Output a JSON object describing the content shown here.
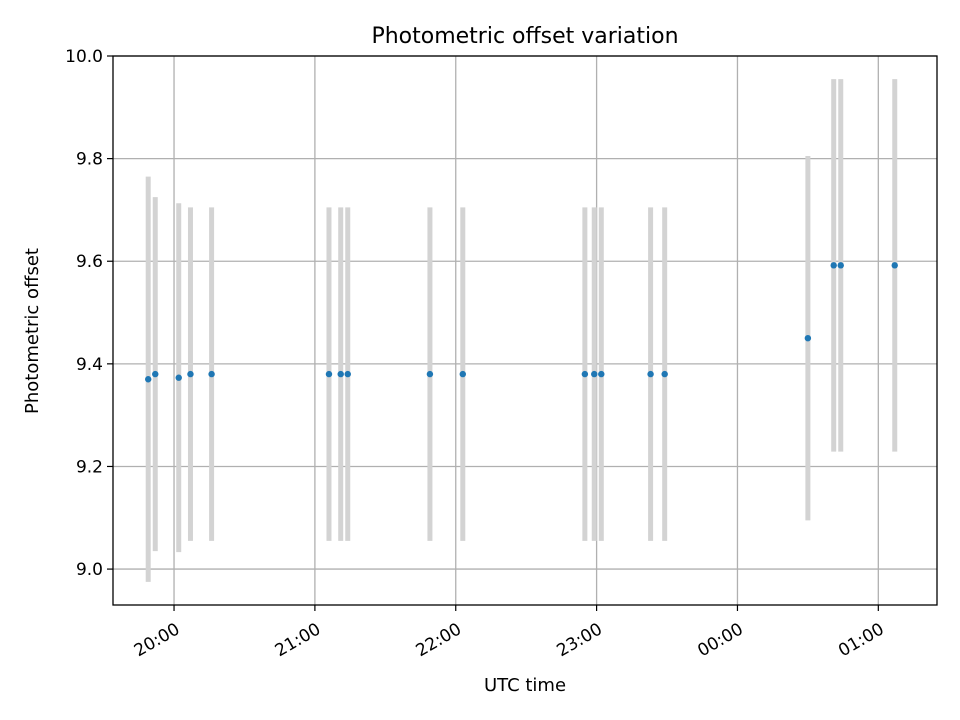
{
  "chart_data": {
    "type": "scatter",
    "title": "Photometric offset variation",
    "xlabel": "UTC time",
    "ylabel": "Photometric offset",
    "xlim": [
      "19:34",
      "01:25"
    ],
    "ylim": [
      8.93,
      10.0
    ],
    "grid": true,
    "colors": {
      "points": "#1f77b4",
      "errorbars": "#d3d3d3",
      "grid": "#b0b0b0"
    },
    "x_ticks": [
      "20:00",
      "21:00",
      "22:00",
      "23:00",
      "00:00",
      "01:00"
    ],
    "y_ticks": [
      "9.0",
      "9.2",
      "9.4",
      "9.6",
      "9.8",
      "10.0"
    ],
    "series": [
      {
        "points": [
          {
            "x": "19:49",
            "y": 9.37,
            "yerr": 0.395
          },
          {
            "x": "19:52",
            "y": 9.38,
            "yerr": 0.345
          },
          {
            "x": "20:02",
            "y": 9.373,
            "yerr": 0.34
          },
          {
            "x": "20:07",
            "y": 9.38,
            "yerr": 0.325
          },
          {
            "x": "20:16",
            "y": 9.38,
            "yerr": 0.325
          },
          {
            "x": "21:06",
            "y": 9.38,
            "yerr": 0.325
          },
          {
            "x": "21:11",
            "y": 9.38,
            "yerr": 0.325
          },
          {
            "x": "21:14",
            "y": 9.38,
            "yerr": 0.325
          },
          {
            "x": "21:49",
            "y": 9.38,
            "yerr": 0.325
          },
          {
            "x": "22:03",
            "y": 9.38,
            "yerr": 0.325
          },
          {
            "x": "22:55",
            "y": 9.38,
            "yerr": 0.325
          },
          {
            "x": "22:59",
            "y": 9.38,
            "yerr": 0.325
          },
          {
            "x": "23:02",
            "y": 9.38,
            "yerr": 0.325
          },
          {
            "x": "23:23",
            "y": 9.38,
            "yerr": 0.325
          },
          {
            "x": "23:29",
            "y": 9.38,
            "yerr": 0.325
          },
          {
            "x": "00:30",
            "y": 9.45,
            "yerr": 0.355
          },
          {
            "x": "00:41",
            "y": 9.592,
            "yerr": 0.363
          },
          {
            "x": "00:44",
            "y": 9.592,
            "yerr": 0.363
          },
          {
            "x": "01:07",
            "y": 9.592,
            "yerr": 0.363
          }
        ]
      }
    ]
  }
}
